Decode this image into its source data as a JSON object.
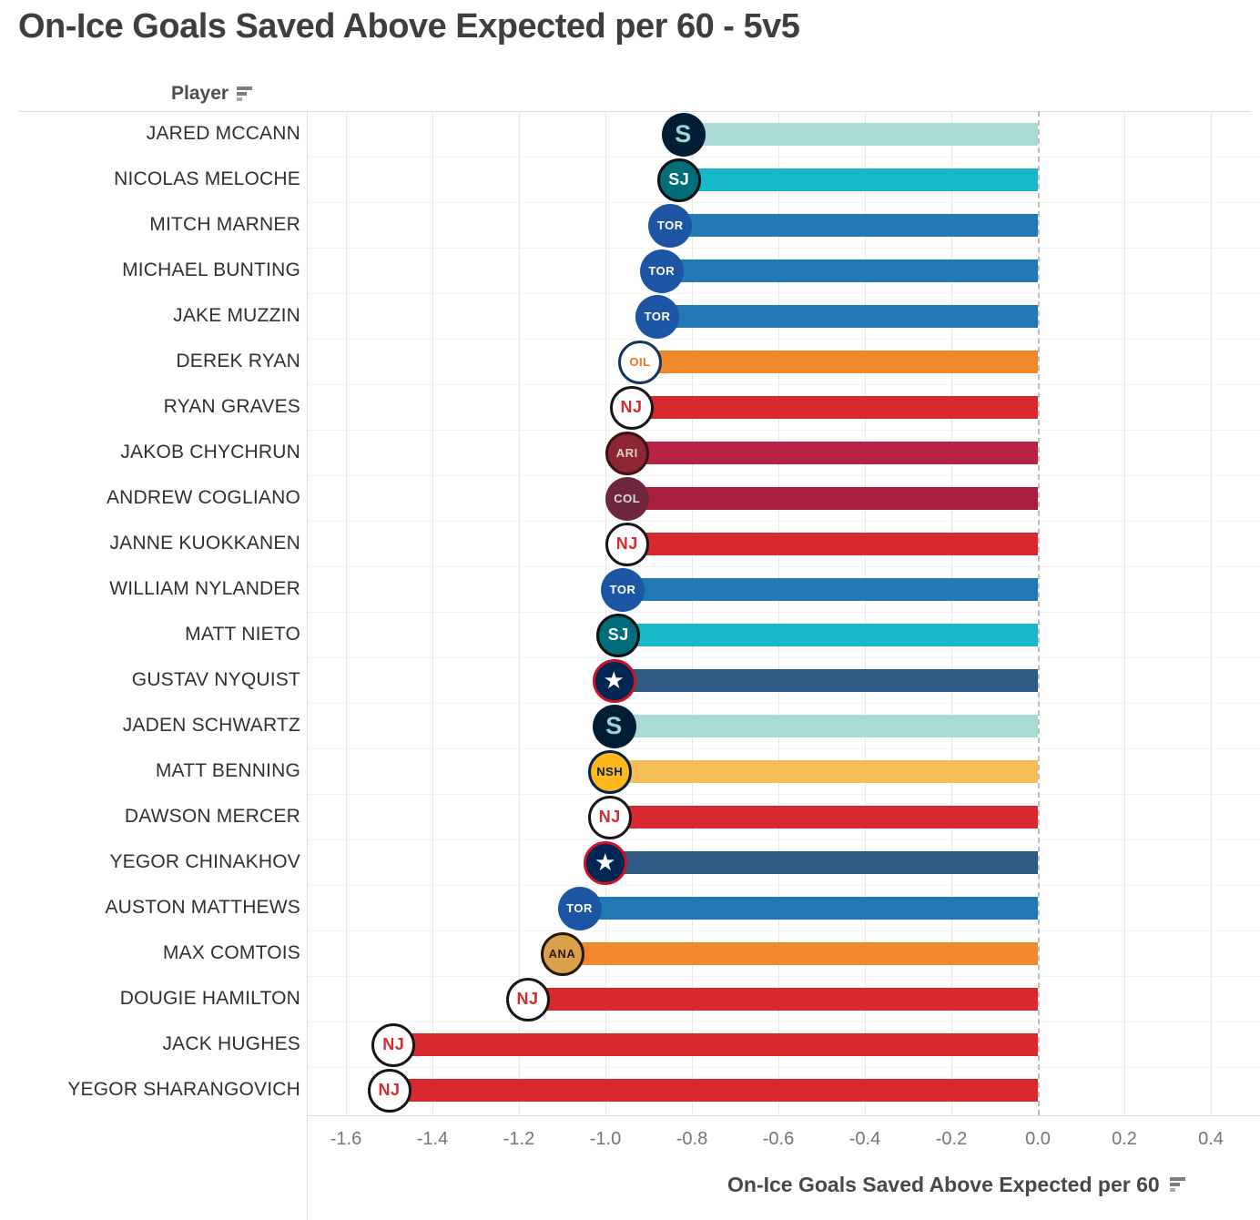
{
  "title": "On-Ice Goals Saved Above Expected per 60 - 5v5",
  "player_header": {
    "label": "Player",
    "sort_icon": "sort-bars-icon"
  },
  "x_axis": {
    "title": "On-Ice Goals Saved Above Expected per 60",
    "sort_icon": "sort-bars-icon"
  },
  "chart_data": {
    "type": "bar",
    "orientation": "horizontal",
    "title": "On-Ice Goals Saved Above Expected per 60 - 5v5",
    "xlabel": "On-Ice Goals Saved Above Expected per 60",
    "ylabel": "Player",
    "xlim": [
      -1.69,
      0.51
    ],
    "grid": true,
    "zero_line": "dashed",
    "x_ticks": [
      -1.6,
      -1.4,
      -1.2,
      -1.0,
      -0.8,
      -0.6,
      -0.4,
      -0.2,
      0.0,
      0.2,
      0.4
    ],
    "x_tick_labels": [
      "-1.6",
      "-1.4",
      "-1.2",
      "-1.0",
      "-0.8",
      "-0.6",
      "-0.4",
      "-0.2",
      "0.0",
      "0.2",
      "0.4"
    ],
    "rows": [
      {
        "player": "JARED MCCANN",
        "team": "SEA",
        "value": -0.82
      },
      {
        "player": "NICOLAS MELOCHE",
        "team": "SJS",
        "value": -0.83
      },
      {
        "player": "MITCH MARNER",
        "team": "TOR",
        "value": -0.85
      },
      {
        "player": "MICHAEL BUNTING",
        "team": "TOR",
        "value": -0.87
      },
      {
        "player": "JAKE MUZZIN",
        "team": "TOR",
        "value": -0.88
      },
      {
        "player": "DEREK RYAN",
        "team": "EDM",
        "value": -0.92
      },
      {
        "player": "RYAN GRAVES",
        "team": "NJD",
        "value": -0.94
      },
      {
        "player": "JAKOB CHYCHRUN",
        "team": "ARI",
        "value": -0.95
      },
      {
        "player": "ANDREW COGLIANO",
        "team": "COL",
        "value": -0.95
      },
      {
        "player": "JANNE KUOKKANEN",
        "team": "NJD",
        "value": -0.95
      },
      {
        "player": "WILLIAM NYLANDER",
        "team": "TOR",
        "value": -0.96
      },
      {
        "player": "MATT NIETO",
        "team": "SJS",
        "value": -0.97
      },
      {
        "player": "GUSTAV NYQUIST",
        "team": "CBJ",
        "value": -0.98
      },
      {
        "player": "JADEN SCHWARTZ",
        "team": "SEA",
        "value": -0.98
      },
      {
        "player": "MATT BENNING",
        "team": "NSH",
        "value": -0.99
      },
      {
        "player": "DAWSON MERCER",
        "team": "NJD",
        "value": -0.99
      },
      {
        "player": "YEGOR CHINAKHOV",
        "team": "CBJ",
        "value": -1.0
      },
      {
        "player": "AUSTON MATTHEWS",
        "team": "TOR",
        "value": -1.06
      },
      {
        "player": "MAX COMTOIS",
        "team": "ANA",
        "value": -1.1
      },
      {
        "player": "DOUGIE HAMILTON",
        "team": "NJD",
        "value": -1.18
      },
      {
        "player": "JACK HUGHES",
        "team": "NJD",
        "value": -1.49
      },
      {
        "player": "YEGOR SHARANGOVICH",
        "team": "NJD",
        "value": -1.5
      }
    ]
  },
  "teams": {
    "SEA": {
      "name": "Seattle Kraken",
      "bar_color": "#a9dad3",
      "badge": {
        "label": "S",
        "bg": "#001d33",
        "ring": "",
        "fg": "#9ad7d4"
      }
    },
    "SJS": {
      "name": "San Jose Sharks",
      "bar_color": "#16b8c9",
      "badge": {
        "label": "SJ",
        "bg": "#006d7a",
        "ring": "#101010",
        "fg": "#ffffff"
      }
    },
    "TOR": {
      "name": "Toronto Maple Leafs",
      "bar_color": "#2278b5",
      "badge": {
        "label": "TOR",
        "bg": "#1c55a4",
        "ring": "",
        "fg": "#ffffff"
      }
    },
    "EDM": {
      "name": "Edmonton Oilers",
      "bar_color": "#f0882d",
      "badge": {
        "label": "OIL",
        "bg": "#ffffff",
        "ring": "#14355f",
        "fg": "#f1701f"
      }
    },
    "NJD": {
      "name": "New Jersey Devils",
      "bar_color": "#d8292f",
      "badge": {
        "label": "NJ",
        "bg": "#ffffff",
        "ring": "#161616",
        "fg": "#d8292f"
      }
    },
    "ARI": {
      "name": "Arizona Coyotes",
      "bar_color": "#b62345",
      "badge": {
        "label": "ARI",
        "bg": "#8c2633",
        "ring": "#3c1118",
        "fg": "#e2d6b5"
      }
    },
    "COL": {
      "name": "Colorado Avalanche",
      "bar_color": "#a91d3e",
      "badge": {
        "label": "COL",
        "bg": "#6f263d",
        "ring": "",
        "fg": "#d3dbe3"
      }
    },
    "CBJ": {
      "name": "Columbus Blue Jackets",
      "bar_color": "#2e5a84",
      "badge": {
        "label": "★",
        "bg": "#002654",
        "ring": "#ce1126",
        "fg": "#ffffff"
      }
    },
    "NSH": {
      "name": "Nashville Predators",
      "bar_color": "#f4bd58",
      "badge": {
        "label": "NSH",
        "bg": "#ffb81c",
        "ring": "#04214d",
        "fg": "#04214d"
      }
    },
    "ANA": {
      "name": "Anaheim Ducks",
      "bar_color": "#f0892d",
      "badge": {
        "label": "ANA",
        "bg": "#d9a04e",
        "ring": "#221909",
        "fg": "#2b1c07"
      }
    }
  }
}
